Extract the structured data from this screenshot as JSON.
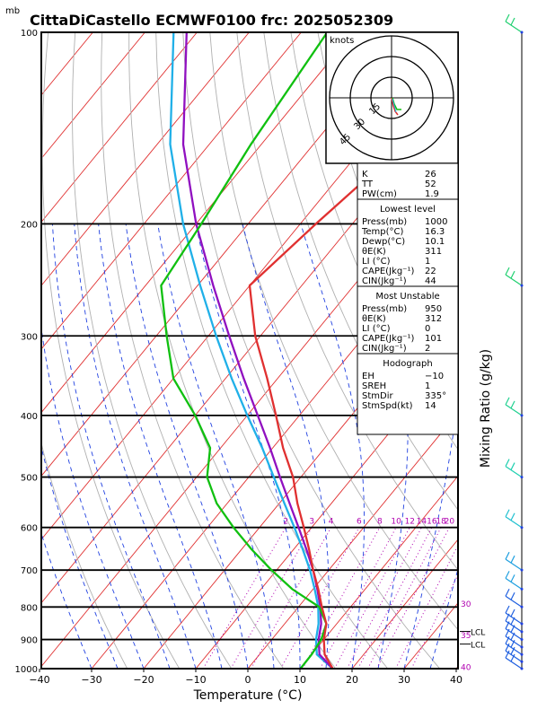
{
  "header": {
    "unit_mark": "mb",
    "title": "CittaDiCastello ECMWF0100 frc: 2025052309"
  },
  "chart_data": {
    "type": "line",
    "subtype": "skew-T log-P diagram",
    "xlabel": "Temperature (°C)",
    "ylabel": "Mixing Ratio (g/kg)",
    "xlim": [
      -40,
      40
    ],
    "ylim_pressure": [
      1000,
      100
    ],
    "x_ticks": [
      "−40",
      "−30",
      "−20",
      "−10",
      "0",
      "10",
      "20",
      "30",
      "40"
    ],
    "x_tick_values": [
      -40,
      -30,
      -20,
      -10,
      0,
      10,
      20,
      30,
      40
    ],
    "p_ticks": [
      "100",
      "200",
      "300",
      "400",
      "500",
      "600",
      "700",
      "800",
      "900",
      "1000"
    ],
    "p_tick_values": [
      100,
      200,
      300,
      400,
      500,
      600,
      700,
      800,
      900,
      1000
    ],
    "mixing_ratio_labels": [
      "2",
      "3",
      "4",
      "6",
      "8",
      "10",
      "12",
      "14",
      "16",
      "18",
      "20",
      "25",
      "30"
    ],
    "mixing_ratio_values": [
      2,
      3,
      4,
      6,
      8,
      10,
      12,
      14,
      16,
      18,
      20,
      25,
      30
    ],
    "side_temp_labels": [
      "30",
      "35",
      "40"
    ],
    "lcl_labels": [
      "LCL",
      "LCL"
    ],
    "series": [
      {
        "role": "temperature",
        "color": "#e03030",
        "p": [
          1000,
          950,
          900,
          850,
          800,
          750,
          700,
          650,
          600,
          550,
          500,
          450,
          400,
          350,
          300,
          250,
          200,
          150,
          100
        ],
        "t": [
          16.3,
          12.5,
          10.0,
          8.0,
          4.5,
          1.0,
          -3.0,
          -7.0,
          -11.5,
          -16.5,
          -21.5,
          -28.0,
          -34.5,
          -42.0,
          -51.0,
          -60.0,
          -57.0,
          -52.5,
          -49.5
        ]
      },
      {
        "role": "dewpoint",
        "color": "#10c010",
        "p": [
          1000,
          950,
          900,
          850,
          800,
          750,
          700,
          650,
          600,
          550,
          500,
          450,
          400,
          350,
          300,
          250,
          200,
          150,
          100
        ],
        "t": [
          10.1,
          10.0,
          9.5,
          8.0,
          4.0,
          -4.0,
          -11.0,
          -18.0,
          -25.0,
          -32.0,
          -38.0,
          -42.0,
          -50.0,
          -60.0,
          -68.0,
          -77.0,
          -79.0,
          -82.0,
          -85.0
        ]
      },
      {
        "role": "parcel",
        "color": "#9010c0",
        "p": [
          1000,
          950,
          900,
          850,
          800,
          750,
          700,
          650,
          600,
          550,
          500,
          450,
          400,
          350,
          300,
          250,
          200,
          150,
          100
        ],
        "t": [
          16.3,
          11.5,
          9.0,
          7.0,
          4.2,
          0.8,
          -3.0,
          -7.5,
          -12.5,
          -18.0,
          -24.0,
          -30.5,
          -38.0,
          -46.5,
          -56.0,
          -67.0,
          -80.0,
          -95.0,
          -112.0
        ]
      },
      {
        "role": "parcel-alt",
        "color": "#20b0e8",
        "p": [
          1000,
          950,
          900,
          850,
          800,
          750,
          700,
          650,
          600,
          550,
          500,
          450,
          400,
          350,
          300,
          250,
          200,
          150,
          100
        ],
        "t": [
          16.3,
          11.0,
          8.5,
          6.5,
          3.8,
          0.3,
          -3.6,
          -8.2,
          -13.3,
          -19.0,
          -25.2,
          -32.0,
          -40.0,
          -48.8,
          -58.5,
          -69.5,
          -82.5,
          -97.5,
          -114.5
        ]
      }
    ]
  },
  "hodograph": {
    "label": "knots",
    "ring_labels": [
      "15",
      "30",
      "45"
    ]
  },
  "indices": {
    "top": [
      {
        "k": "K",
        "v": "26"
      },
      {
        "k": "TT",
        "v": "52"
      },
      {
        "k": "PW(cm)",
        "v": "1.9"
      }
    ],
    "lowest_title": "Lowest level",
    "lowest": [
      {
        "k": "Press(mb)",
        "v": "1000"
      },
      {
        "k": "Temp(°C)",
        "v": "16.3"
      },
      {
        "k": "Dewp(°C)",
        "v": "10.1"
      },
      {
        "k": "θE(K)",
        "v": "311"
      },
      {
        "k": "LI (°C)",
        "v": "1"
      },
      {
        "k": "CAPE(Jkg⁻¹)",
        "v": "22"
      },
      {
        "k": "CIN(Jkg⁻¹)",
        "v": "44"
      }
    ],
    "mu_title": "Most Unstable",
    "mu": [
      {
        "k": "Press(mb)",
        "v": "950"
      },
      {
        "k": "θE(K)",
        "v": "312"
      },
      {
        "k": "LI (°C)",
        "v": "0"
      },
      {
        "k": "CAPE(Jkg⁻¹)",
        "v": "101"
      },
      {
        "k": "CIN(Jkg⁻¹)",
        "v": "2"
      }
    ],
    "hodo_title": "Hodograph",
    "hodo": [
      {
        "k": "EH",
        "v": "−10"
      },
      {
        "k": "SREH",
        "v": "1"
      },
      {
        "k": "StmDir",
        "v": "335°"
      },
      {
        "k": "StmSpd(kt)",
        "v": "14"
      }
    ]
  },
  "colors": {
    "temperature": "#e03030",
    "dewpoint": "#10c010",
    "parcel": "#9010c0",
    "parcel_alt": "#20b0e8",
    "isotherm": "#e03030",
    "dry_adiabat": "#b0b0b0",
    "moist_adiabat": "#2040e0",
    "mixing_ratio": "#b000b0"
  }
}
